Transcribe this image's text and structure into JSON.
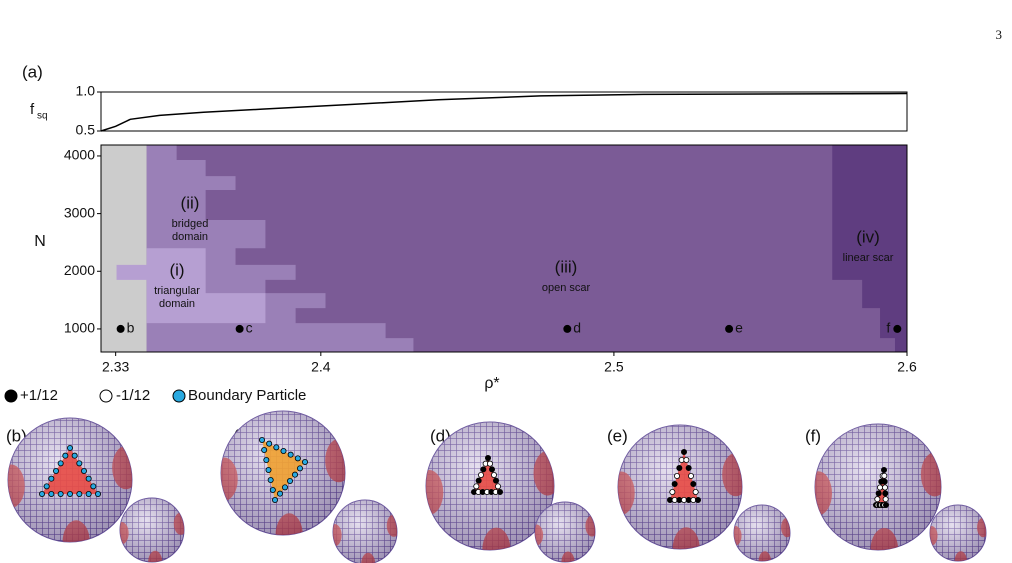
{
  "page_number": "3",
  "chart_data": [
    {
      "type": "line",
      "panel_label": "(a)",
      "ylabel": "f",
      "ylabel_subscript": "sq",
      "x": [
        2.325,
        2.33,
        2.335,
        2.345,
        2.36,
        2.38,
        2.41,
        2.44,
        2.475,
        2.51,
        2.6
      ],
      "values": [
        0.5,
        0.56,
        0.65,
        0.7,
        0.74,
        0.78,
        0.84,
        0.9,
        0.95,
        0.97,
        0.98
      ],
      "color": "#000000",
      "xlim": [
        2.325,
        2.6
      ],
      "ylim": [
        0.5,
        1.0
      ],
      "yticks": [
        0.5,
        {
          "value": 1,
          "label": "1.0"
        }
      ]
    },
    {
      "type": "phase",
      "xlabel": "ρ*",
      "ylabel": "N",
      "xlim": [
        2.325,
        2.6
      ],
      "ylim": [
        600,
        4190
      ],
      "xticks": [
        2.33,
        2.4,
        2.5,
        2.6
      ],
      "yticks": [
        1000,
        2000,
        3000,
        4000
      ],
      "regions": [
        {
          "name": "(iii)",
          "label_lines": [
            "open scar"
          ],
          "color": "#7b5b96",
          "points": [
            [
              2.325,
              600
            ],
            [
              2.6,
              600
            ],
            [
              2.6,
              4190
            ],
            [
              2.325,
              4190
            ]
          ]
        },
        {
          "color": "#cccccc",
          "points": [
            [
              2.325,
              600
            ],
            [
              2.3406,
              600
            ],
            [
              2.3406,
              4190
            ],
            [
              2.325,
              4190
            ]
          ]
        },
        {
          "name": "(ii)",
          "label_lines": [
            "bridged",
            "domain"
          ],
          "color": "#9a80b7",
          "points": [
            [
              2.3406,
              4190
            ],
            [
              2.3508,
              4190
            ],
            [
              2.3508,
              3930
            ],
            [
              2.3607,
              3930
            ],
            [
              2.3607,
              3650
            ],
            [
              2.3709,
              3650
            ],
            [
              2.3709,
              3410
            ],
            [
              2.3607,
              3410
            ],
            [
              2.3607,
              2890
            ],
            [
              2.3811,
              2890
            ],
            [
              2.3811,
              2400
            ],
            [
              2.3709,
              2400
            ],
            [
              2.3709,
              2110
            ],
            [
              2.3914,
              2110
            ],
            [
              2.3914,
              1850
            ],
            [
              2.3811,
              1850
            ],
            [
              2.3811,
              1620
            ],
            [
              2.4016,
              1620
            ],
            [
              2.4016,
              1360
            ],
            [
              2.3914,
              1360
            ],
            [
              2.3914,
              1100
            ],
            [
              2.4221,
              1100
            ],
            [
              2.4221,
              840
            ],
            [
              2.4316,
              840
            ],
            [
              2.4316,
              600
            ],
            [
              2.3406,
              600
            ]
          ]
        },
        {
          "name": "(i)",
          "label_lines": [
            "triangular",
            "domain"
          ],
          "color": "#b69fd2",
          "points": [
            [
              2.3303,
              2110
            ],
            [
              2.3406,
              2110
            ],
            [
              2.3406,
              2400
            ],
            [
              2.3607,
              2400
            ],
            [
              2.3607,
              1620
            ],
            [
              2.3811,
              1620
            ],
            [
              2.3811,
              1100
            ],
            [
              2.3406,
              1100
            ],
            [
              2.3406,
              1850
            ],
            [
              2.3303,
              1850
            ]
          ]
        },
        {
          "name": "(iv)",
          "label_lines": [
            "linear scar"
          ],
          "color": "#5f3d80",
          "points": [
            [
              2.5745,
              4190
            ],
            [
              2.6,
              4190
            ],
            [
              2.6,
              600
            ],
            [
              2.5959,
              600
            ],
            [
              2.5959,
              840
            ],
            [
              2.5908,
              840
            ],
            [
              2.5908,
              1360
            ],
            [
              2.5847,
              1360
            ],
            [
              2.5847,
              1850
            ],
            [
              2.5745,
              1850
            ]
          ]
        }
      ],
      "points": [
        {
          "name": "b",
          "x": 2.3317,
          "y": 1000
        },
        {
          "name": "c",
          "x": 2.3723,
          "y": 1000
        },
        {
          "name": "d",
          "x": 2.4841,
          "y": 1000
        },
        {
          "name": "e",
          "x": 2.5393,
          "y": 1000
        },
        {
          "name": "f",
          "x": 2.5967,
          "y": 1000
        }
      ],
      "point_color": "#000000"
    }
  ],
  "legend": [
    {
      "label": "+1/12",
      "color": "#000000"
    },
    {
      "label": "-1/12",
      "color": "#ffffff"
    },
    {
      "label": "Boundary Particle",
      "color": "#29a9e0"
    }
  ],
  "panels": [
    "(b)",
    "(c)",
    "(d)",
    "(e)",
    "(f)"
  ]
}
